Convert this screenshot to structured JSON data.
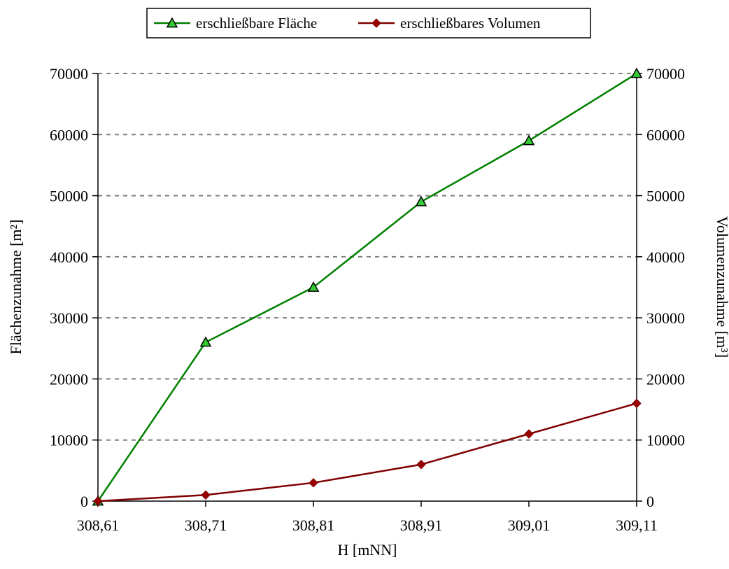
{
  "chart_data": {
    "type": "line",
    "title": "",
    "x": [
      "308,61",
      "308,71",
      "308,81",
      "308,91",
      "309,01",
      "309,11"
    ],
    "xlabel": "H [mNN]",
    "ylabel_left": "Flächenzunahme [m²]",
    "ylabel_right": "Volumenzunahme [m³]",
    "ylim_left": [
      0,
      70000
    ],
    "ylim_right": [
      0,
      70000
    ],
    "y_ticks": [
      "0",
      "10000",
      "20000",
      "30000",
      "40000",
      "50000",
      "60000",
      "70000"
    ],
    "grid": "horizontal dashed",
    "legend_position": "top-center",
    "series": [
      {
        "name": "erschließbare Fläche",
        "axis": "left",
        "color": "#008000",
        "marker": "triangle",
        "marker_fill": "#33cc33",
        "values": [
          0,
          26000,
          35000,
          49000,
          59000,
          70000
        ]
      },
      {
        "name": "erschließbares Volumen",
        "axis": "right",
        "color": "#800000",
        "marker": "diamond",
        "marker_fill": "#990000",
        "values": [
          0,
          1000,
          3000,
          6000,
          11000,
          16000
        ]
      }
    ]
  }
}
